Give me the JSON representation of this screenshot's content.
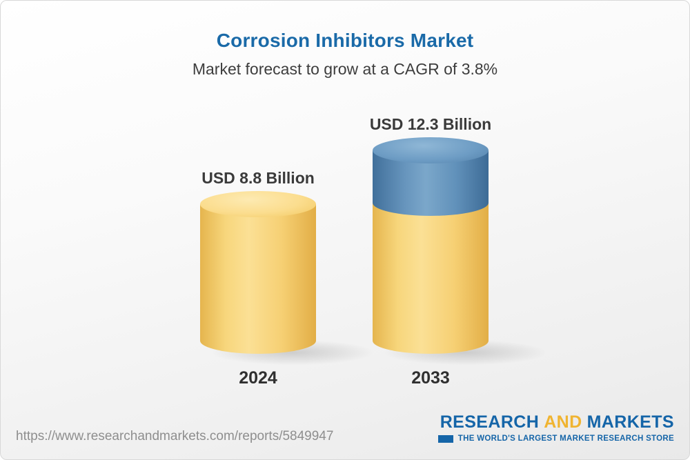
{
  "chart_data": {
    "type": "bar",
    "variant": "3d-cylinder",
    "title": "Corrosion Inhibitors Market",
    "subtitle": "Market forecast to grow at a CAGR of 3.8%",
    "categories": [
      "2024",
      "2033"
    ],
    "values": [
      8.8,
      12.3
    ],
    "value_labels": [
      "USD 8.8 Billion",
      "USD 12.3 Billion"
    ],
    "unit": "USD Billion",
    "cagr_pct": 3.8,
    "legend": "none",
    "axes": "none",
    "colors": {
      "bar_2024": "#f6d074",
      "bar_2033_base": "#f6d074",
      "bar_2033_growth": "#6191ba",
      "title": "#1a6aa8",
      "labels": "#3a3a3a"
    }
  },
  "footer": {
    "url": "https://www.researchandmarkets.com/reports/5849947",
    "logo": {
      "word1": "RESEARCH",
      "word2": "AND",
      "word3": "MARKETS",
      "tagline": "THE WORLD'S LARGEST MARKET RESEARCH STORE",
      "brand_blue": "#1565a8",
      "brand_gold": "#f0b431"
    }
  }
}
